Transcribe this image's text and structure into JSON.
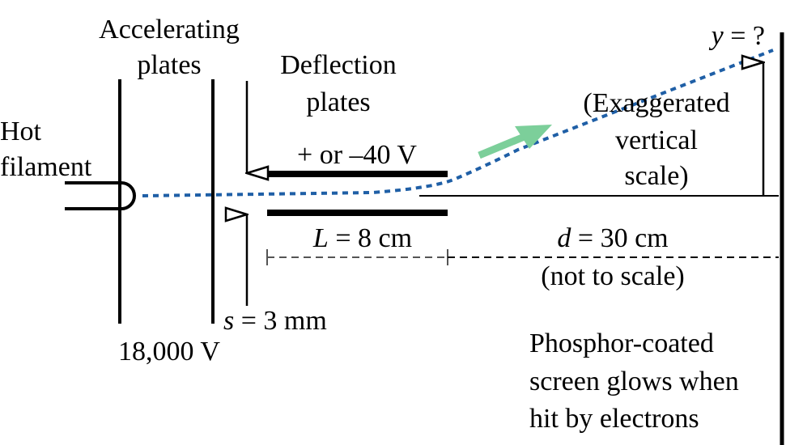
{
  "labels": {
    "accelerating_1": "Accelerating",
    "accelerating_2": "plates",
    "deflection_1": "Deflection",
    "deflection_2": "plates",
    "hot_1": "Hot",
    "hot_2": "filament",
    "voltage_deflect": "+ or –40 V",
    "length_var": "L",
    "length_val": " = 8 cm",
    "distance_var": "d",
    "distance_val": " = 30 cm",
    "not_to_scale": "(not to scale)",
    "gap_var": "s",
    "gap_val": " = 3 mm",
    "voltage_accel": "18,000 V",
    "y_var": "y",
    "y_val": " = ?",
    "exag_1": "(Exaggerated",
    "exag_2": "vertical",
    "exag_3": "scale)",
    "screen_1": "Phosphor-coated",
    "screen_2": "screen glows when",
    "screen_3": "hit by electrons"
  },
  "colors": {
    "beam": "#1f5fa6",
    "arrow": "#7ccf9a",
    "ink": "#000000"
  }
}
